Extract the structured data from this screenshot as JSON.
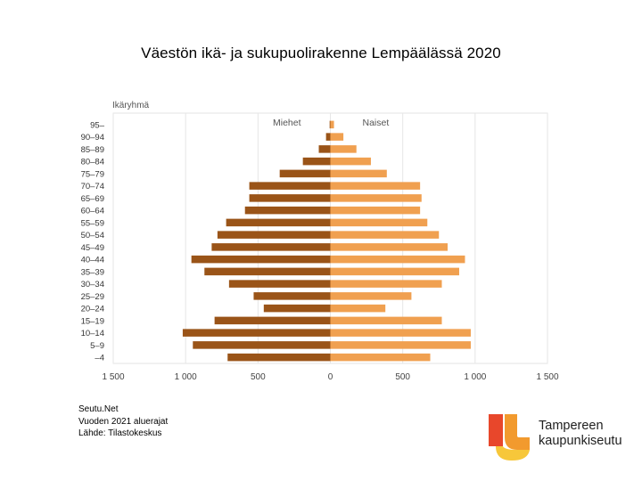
{
  "title": "Väestön ikä- ja sukupuolirakenne Lempäälässä 2020",
  "chart_data": {
    "type": "bar",
    "orientation": "horizontal-pyramid",
    "axis_title": "Ikäryhmä",
    "categories": [
      "95–",
      "90–94",
      "85–89",
      "80–84",
      "75–79",
      "70–74",
      "65–69",
      "60–64",
      "55–59",
      "50–54",
      "45–49",
      "40–44",
      "35–39",
      "30–34",
      "25–29",
      "20–24",
      "15–19",
      "10–14",
      "5–9",
      "–4"
    ],
    "series": [
      {
        "name": "Miehet",
        "color": "#9a5418",
        "values": [
          5,
          30,
          80,
          190,
          350,
          560,
          560,
          590,
          720,
          780,
          820,
          960,
          870,
          700,
          530,
          460,
          800,
          1020,
          950,
          710
        ]
      },
      {
        "name": "Naiset",
        "color": "#f0a050",
        "values": [
          25,
          90,
          180,
          280,
          390,
          620,
          630,
          620,
          670,
          750,
          810,
          930,
          890,
          770,
          560,
          380,
          770,
          970,
          970,
          690
        ]
      }
    ],
    "xlim": [
      -1500,
      1500
    ],
    "xticks": [
      -1500,
      -1000,
      -500,
      0,
      500,
      1000,
      1500
    ],
    "xtick_labels": [
      "1 500",
      "1 000",
      "500",
      "0",
      "500",
      "1 000",
      "1 500"
    ],
    "grid": true,
    "legend": "top-center"
  },
  "source": {
    "line1": "Seutu.Net",
    "line2": "Vuoden 2021 aluerajat",
    "line3": "Lähde: Tilastokeskus"
  },
  "logo": {
    "line1": "Tampereen",
    "line2": "kaupunkiseutu",
    "colors": [
      "#e8472b",
      "#f29a2e",
      "#f7c73a"
    ]
  }
}
